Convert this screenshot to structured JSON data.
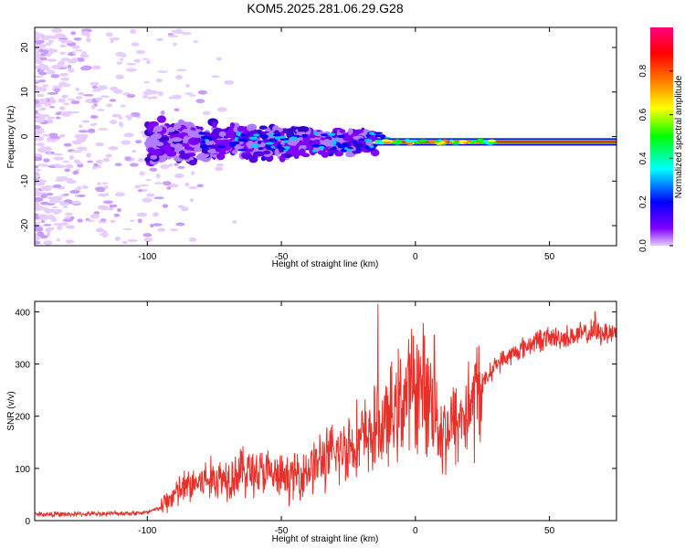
{
  "title": "KOM5.2025.281.06.29.G28",
  "chart_data": [
    {
      "type": "heatmap",
      "xlabel": "Height of straight line (km)",
      "ylabel": "Frequency (Hz)",
      "xlim": [
        -142,
        75
      ],
      "ylim": [
        -24.5,
        24.5
      ],
      "xticks": [
        -100,
        -50,
        0,
        50
      ],
      "yticks": [
        -20,
        -10,
        0,
        10,
        20
      ],
      "colorbar": {
        "label": "Normalized spectral amplitude",
        "range": [
          0,
          1
        ],
        "ticks": [
          0.0,
          0.2,
          0.4,
          0.6,
          0.8
        ],
        "colormap": [
          "#e6ccff",
          "#8000ff",
          "#0000ff",
          "#00ffff",
          "#00ff00",
          "#ffff00",
          "#ff8000",
          "#ff0000",
          "#ff0080"
        ]
      },
      "ridge": {
        "center_hz": -1.2,
        "strong_from_km": -15,
        "strong_to_km": 75,
        "scatter_from_km": -142,
        "scatter_to_km": -15
      }
    },
    {
      "type": "line",
      "xlabel": "Height of straight line (km)",
      "ylabel": "SNR (v/v)",
      "xlim": [
        -142,
        75
      ],
      "ylim": [
        0,
        420
      ],
      "xticks": [
        -100,
        -50,
        0,
        50
      ],
      "yticks": [
        0,
        100,
        200,
        300,
        400
      ],
      "grid": false,
      "color": "#e8302a",
      "series": [
        {
          "name": "",
          "x": [
            -142,
            -130,
            -120,
            -110,
            -100,
            -95,
            -90,
            -85,
            -80,
            -75,
            -70,
            -65,
            -60,
            -55,
            -50,
            -45,
            -40,
            -35,
            -30,
            -25,
            -20,
            -15,
            -10,
            -5,
            0,
            5,
            10,
            15,
            20,
            25,
            30,
            35,
            40,
            45,
            50,
            55,
            60,
            65,
            70,
            75
          ],
          "y": [
            12,
            12,
            13,
            14,
            15,
            25,
            50,
            65,
            75,
            80,
            85,
            95,
            95,
            90,
            80,
            85,
            100,
            115,
            125,
            145,
            155,
            170,
            190,
            230,
            260,
            245,
            170,
            185,
            215,
            260,
            300,
            315,
            330,
            345,
            350,
            350,
            355,
            360,
            360,
            362
          ]
        }
      ],
      "spikes": [
        {
          "x": -14,
          "y": 415
        },
        {
          "x": 7,
          "y": 355
        },
        {
          "x": 67,
          "y": 400
        }
      ]
    }
  ]
}
